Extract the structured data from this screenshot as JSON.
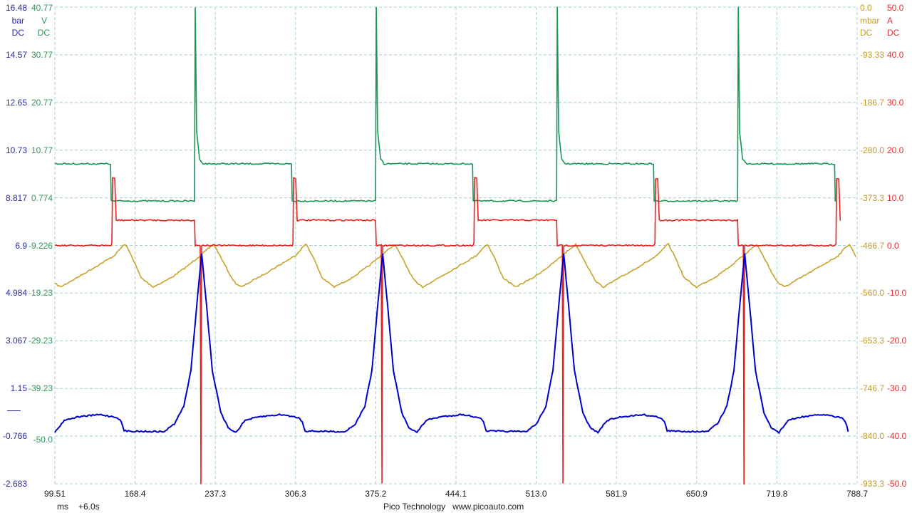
{
  "footer": {
    "time_unit": "ms",
    "time_offset": "+6.0s",
    "brand": "Pico Technology   www.picoauto.com"
  },
  "colors": {
    "blue": "#0000cc",
    "green": "#119955",
    "yellow": "#c9a22c",
    "red": "#e52222",
    "grid": "#a9cfd3"
  },
  "chart_data": {
    "type": "line",
    "grid": true,
    "x": {
      "unit": "ms",
      "range": [
        99.51,
        788.7
      ],
      "ticks": [
        "99.51",
        "168.4",
        "237.3",
        "306.3",
        "375.2",
        "444.1",
        "513.0",
        "581.9",
        "650.9",
        "719.8",
        "788.7"
      ]
    },
    "axes": [
      {
        "id": "A",
        "side": "left",
        "unit": "bar",
        "coupling": "DC",
        "color": "#2b2ba6",
        "range": [
          -2.683,
          16.48
        ],
        "ticks": [
          "16.48",
          "14.57",
          "12.65",
          "10.73",
          "8.817",
          "6.9",
          "4.984",
          "3.067",
          "1.15",
          "-0.766",
          "-2.683"
        ]
      },
      {
        "id": "B",
        "side": "left",
        "unit": "V",
        "coupling": "DC",
        "color": "#2f9a5c",
        "range": [
          -59.23,
          40.77
        ],
        "ticks": [
          "40.77",
          "30.77",
          "20.77",
          "10.77",
          "0.774",
          "-9.226",
          "-19.23",
          "-29.23",
          "-39.23",
          "-50.0"
        ]
      },
      {
        "id": "C",
        "side": "right",
        "unit": "mbar",
        "coupling": "DC",
        "color": "#c49a2a",
        "range": [
          -933.3,
          0.0
        ],
        "ticks": [
          "0.0",
          "-93.33",
          "-186.7",
          "-280.0",
          "-373.3",
          "-466.7",
          "-560.0",
          "-653.3",
          "-746.7",
          "-840.0",
          "-933.3"
        ]
      },
      {
        "id": "D",
        "side": "right",
        "unit": "A",
        "coupling": "DC",
        "color": "#e03030",
        "range": [
          -50.0,
          50.0
        ],
        "ticks": [
          "50.0",
          "40.0",
          "30.0",
          "20.0",
          "10.0",
          "0.0",
          "-10.0",
          "-20.0",
          "-30.0",
          "-40.0",
          "-50.0"
        ]
      }
    ],
    "period_ms": 155.5,
    "series": [
      {
        "axis": "C",
        "color": "#c9a22c",
        "cycle": [
          [
            99.51,
            -541
          ],
          [
            104.4,
            -548
          ],
          [
            125.8,
            -520
          ],
          [
            150.3,
            -487
          ],
          [
            157.7,
            -468
          ],
          [
            160.1,
            -464.5
          ],
          [
            165.6,
            -488
          ],
          [
            173.6,
            -530
          ],
          [
            184.0,
            -548
          ],
          [
            199.3,
            -530
          ],
          [
            214.6,
            -505
          ],
          [
            228.7,
            -478
          ],
          [
            236.0,
            -464.5
          ],
          [
            242.1,
            -490
          ],
          [
            251.3,
            -530
          ],
          [
            255.0,
            -541
          ]
        ]
      },
      {
        "axis": "B",
        "color": "#119955",
        "cycle": [
          [
            99.51,
            7.9
          ],
          [
            147.3,
            7.9
          ],
          [
            147.9,
            0.1
          ],
          [
            219.5,
            0.1
          ],
          [
            220.1,
            45
          ],
          [
            221.3,
            14.6
          ],
          [
            223.8,
            9.0
          ],
          [
            226.8,
            7.9
          ],
          [
            255.0,
            7.9
          ]
        ]
      },
      {
        "axis": "D",
        "color": "#e52222",
        "cycle": [
          [
            99.51,
            0
          ],
          [
            147.9,
            0
          ],
          [
            148.5,
            0.5
          ],
          [
            149.1,
            14.1
          ],
          [
            150.9,
            14.1
          ],
          [
            152.2,
            5.3
          ],
          [
            219.5,
            5.3
          ],
          [
            220.1,
            0
          ],
          [
            224.4,
            0
          ],
          [
            225.0,
            -50
          ],
          [
            225.6,
            0
          ],
          [
            255.0,
            0
          ]
        ]
      },
      {
        "axis": "A",
        "color": "#0000cc",
        "cycle": [
          [
            99.51,
            -0.62
          ],
          [
            107.5,
            -0.13
          ],
          [
            119.7,
            0.01
          ],
          [
            138.1,
            0.1
          ],
          [
            153.4,
            -0.02
          ],
          [
            156.6,
            -0.19
          ],
          [
            159.0,
            -0.56
          ],
          [
            193.2,
            -0.59
          ],
          [
            202.3,
            -0.27
          ],
          [
            210.3,
            0.44
          ],
          [
            216.4,
            1.87
          ],
          [
            221.3,
            4.45
          ],
          [
            225.6,
            6.59
          ],
          [
            229.9,
            4.45
          ],
          [
            234.8,
            1.87
          ],
          [
            242.1,
            0.16
          ],
          [
            248.3,
            -0.42
          ],
          [
            255.0,
            -0.62
          ]
        ]
      }
    ]
  }
}
